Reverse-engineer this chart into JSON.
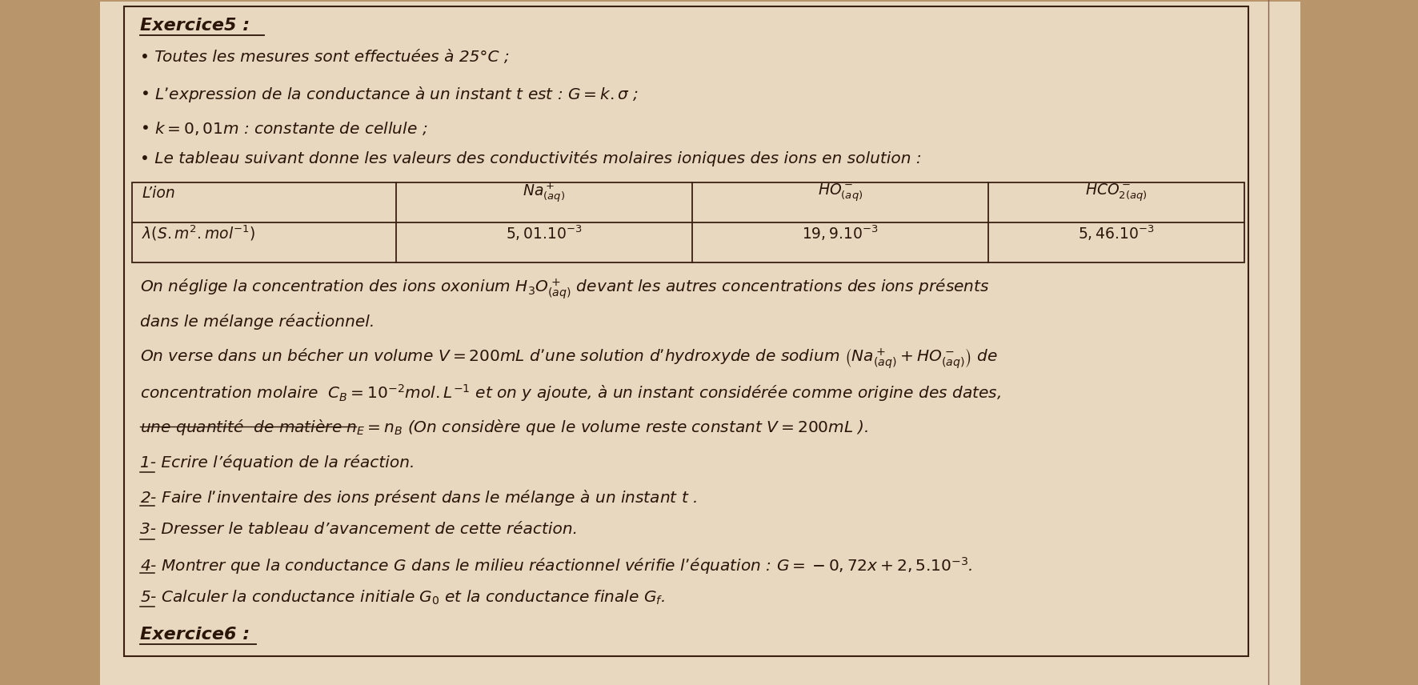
{
  "bg_color": "#b8956a",
  "paper_color": "#e8d8c0",
  "box_edge_color": "#3a2010",
  "text_color": "#2a1508",
  "title": "Exercice5 :",
  "bullet1": "Toutes les mesures sont effectuées à 25°C ;",
  "bullet2": "L’expression de la conductance à un instant $t$ est : $G = k.\\sigma$ ;",
  "bullet3": "$k = 0,01m$ : constante de cellule ;",
  "table_intro": "• Le tableau suivant donne les valeurs des conductivités molaires ioniques des ions en solution :",
  "col0_h": "L’ion",
  "col1_h": "$Na^+_{(aq)}$",
  "col2_h": "$HO^-_{(aq)}$",
  "col3_h": "$HCO^-_{2(aq)}$",
  "col0_d": "$\\lambda(S.m^2.mol^{-1})$",
  "col1_d": "$5,01.10^{-3}$",
  "col2_d": "$19,9.10^{-3}$",
  "col3_d": "$5,46.10^{-3}$",
  "p1": "On néglige la concentration des ions oxonium $H_3O^+_{(aq)}$ devant les autres concentrations des ions présents",
  "p2": "dans le mélange réacṫionnel.",
  "p3": "On verse dans un bécher un volume $V = 200mL$ d’une solution d’hydroxyde de sodium $\\left(Na^+_{(aq)} + HO^-_{(aq)}\\right)$ de",
  "p4": "concentration molaire  $C_B = 10^{-2}mol.L^{-1}$ et on y ajoute, à un instant considérée comme origine des dates,",
  "p5": "une quantité  de matière $n_E = n_B$ (On considère que le volume reste constant $V = 200mL$ ).",
  "q1": "1- Ecrire l’équation de la réaction.",
  "q2": "2- Faire l’inventaire des ions présent dans le mélange à un instant $t$ .",
  "q3": "3- Dresser le tableau d’avancement de cette réaction.",
  "q4": "4- Montrer que la conductance G dans le milieu réactionnel vérifie l’équation : $G = -0,72x + 2,5.10^{-3}$.",
  "q5": "5- Calculer la conductance initiale $G_0$ et la conductance finale $G_f$.",
  "footer": "Exercice6 :"
}
